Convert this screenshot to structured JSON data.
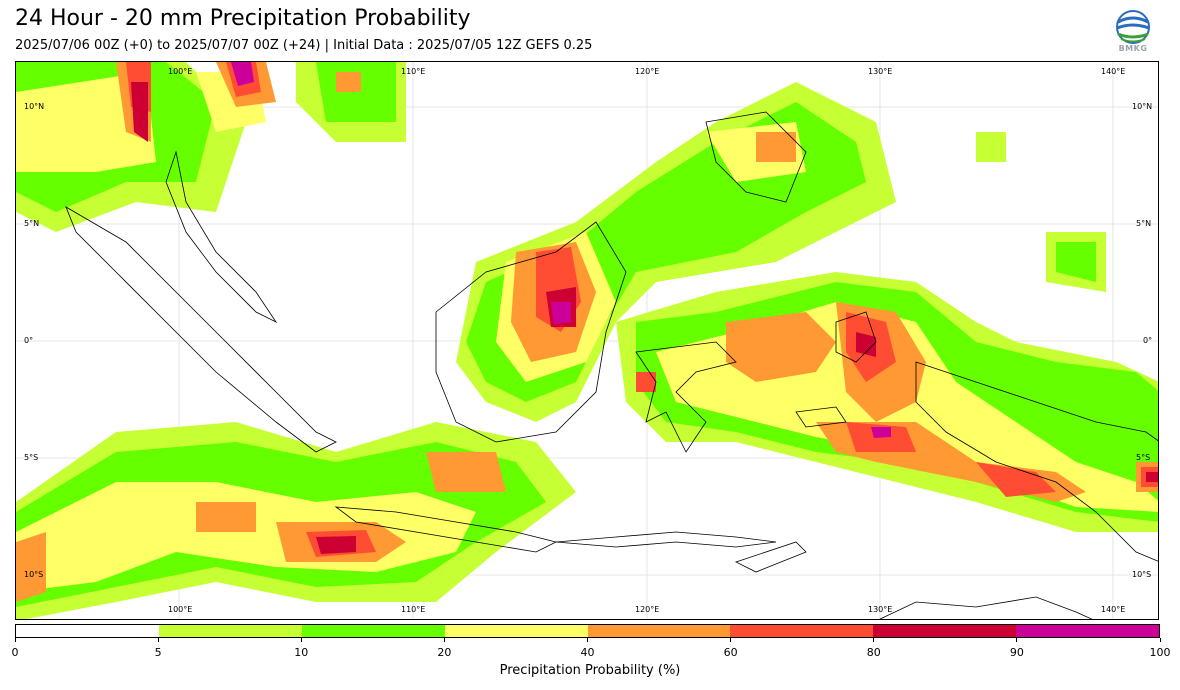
{
  "title": "24 Hour - 20 mm Precipitation Probability",
  "subtitle": "2025/07/06 00Z (+0) to 2025/07/07 00Z (+24) | Initial Data : 2025/07/05 12Z GEFS 0.25",
  "logo": {
    "icon": "bmkg-logo-icon",
    "text": "BMKG"
  },
  "map": {
    "lon_labels_top": [
      "100°E",
      "110°E",
      "120°E",
      "130°E",
      "140°E"
    ],
    "lon_labels_bottom": [
      "100°E",
      "110°E",
      "120°E",
      "130°E",
      "140°E"
    ],
    "lat_labels_left": [
      "10°N",
      "5°N",
      "0°",
      "5°S",
      "10°S"
    ],
    "lat_labels_right": [
      "10°N",
      "5°N",
      "0°",
      "5°S",
      "10°S"
    ],
    "grid": true
  },
  "colorbar": {
    "ticks": [
      "0",
      "5",
      "10",
      "20",
      "40",
      "60",
      "80",
      "90",
      "100"
    ],
    "colors": [
      "#ffffff",
      "#c6ff33",
      "#66ff00",
      "#ffff66",
      "#ff9933",
      "#ff4d33",
      "#cc0033",
      "#cc0099"
    ],
    "label": "Precipitation Probability (%)"
  }
}
